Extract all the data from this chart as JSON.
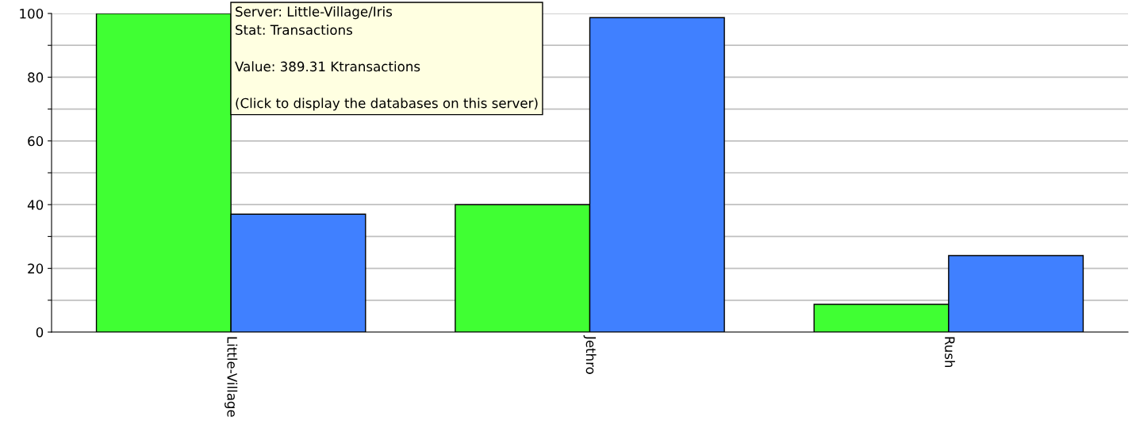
{
  "chart_data": {
    "type": "bar",
    "categories": [
      "Little-Village",
      "Jethro",
      "Rush"
    ],
    "series": [
      {
        "color": "#40ff33",
        "values": [
          100,
          40,
          8.7
        ]
      },
      {
        "color": "#4080ff",
        "values": [
          37,
          98.7,
          24
        ]
      }
    ],
    "ylim": [
      0,
      100
    ],
    "yticks": [
      0,
      {
        "value": 10,
        "label": null
      },
      20,
      {
        "value": 30,
        "label": null
      },
      40,
      {
        "value": 50,
        "label": null
      },
      60,
      {
        "value": 70,
        "label": null
      },
      80,
      {
        "value": 90,
        "label": null
      },
      100
    ],
    "grid": "y",
    "annotations": [
      "Server: Little-Village/Iris\nStat: Transactions\n\nValue: 389.31 Ktransactions\n\n(Click to display the databases on this server)"
    ]
  }
}
